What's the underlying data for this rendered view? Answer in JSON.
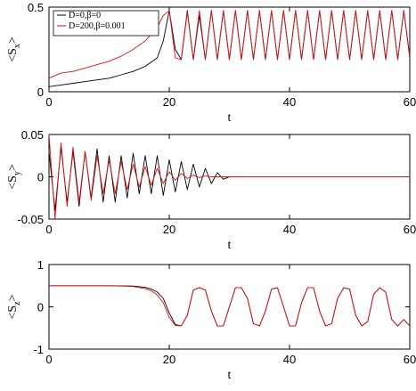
{
  "chart_data": [
    {
      "type": "line",
      "ylabel": "<S_x>",
      "xlabel": "t",
      "xlim": [
        0,
        60
      ],
      "ylim": [
        0,
        0.5
      ],
      "xticks": [
        0,
        20,
        40,
        60
      ],
      "yticks": [
        0,
        0.5
      ],
      "xtick_labels": [
        "0",
        "20",
        "40",
        "60"
      ],
      "ytick_labels": [
        "0",
        "0.5"
      ],
      "legend": {
        "placement": "top-left",
        "entries": [
          "D=0,β=0",
          "D=200,β=0.001"
        ]
      },
      "series": [
        {
          "name": "D=0,β=0",
          "color": "#000000",
          "x": [
            0,
            2,
            4,
            6,
            8,
            10,
            12,
            14,
            16,
            18,
            19,
            20,
            21,
            22,
            23,
            24,
            25,
            26,
            27,
            28,
            29,
            30,
            31,
            32,
            33,
            34,
            35,
            36,
            37,
            38,
            39,
            40,
            41,
            42,
            43,
            44,
            45,
            46,
            47,
            48,
            49,
            50,
            51,
            52,
            53,
            54,
            55,
            56,
            57,
            58,
            59,
            60
          ],
          "y": [
            0.03,
            0.04,
            0.05,
            0.06,
            0.07,
            0.08,
            0.1,
            0.12,
            0.15,
            0.2,
            0.3,
            0.48,
            0.25,
            0.19,
            0.48,
            0.19,
            0.45,
            0.19,
            0.48,
            0.19,
            0.48,
            0.19,
            0.48,
            0.19,
            0.48,
            0.19,
            0.48,
            0.19,
            0.48,
            0.19,
            0.48,
            0.19,
            0.48,
            0.19,
            0.48,
            0.19,
            0.48,
            0.19,
            0.48,
            0.19,
            0.48,
            0.19,
            0.48,
            0.19,
            0.48,
            0.19,
            0.48,
            0.19,
            0.48,
            0.19,
            0.48,
            0.2
          ]
        },
        {
          "name": "D=200,β=0.001",
          "color": "#e01010",
          "x": [
            0,
            2,
            4,
            6,
            8,
            10,
            12,
            14,
            16,
            18,
            19,
            20,
            21,
            22,
            23,
            24,
            25,
            26,
            27,
            28,
            29,
            30,
            31,
            32,
            33,
            34,
            35,
            36,
            37,
            38,
            39,
            40,
            41,
            42,
            43,
            44,
            45,
            46,
            47,
            48,
            49,
            50,
            51,
            52,
            53,
            54,
            55,
            56,
            57,
            58,
            59,
            60
          ],
          "y": [
            0.08,
            0.11,
            0.12,
            0.14,
            0.16,
            0.18,
            0.21,
            0.25,
            0.3,
            0.38,
            0.45,
            0.48,
            0.2,
            0.19,
            0.47,
            0.19,
            0.48,
            0.19,
            0.48,
            0.19,
            0.48,
            0.19,
            0.48,
            0.19,
            0.48,
            0.19,
            0.48,
            0.19,
            0.48,
            0.19,
            0.48,
            0.19,
            0.48,
            0.19,
            0.48,
            0.19,
            0.48,
            0.19,
            0.48,
            0.19,
            0.48,
            0.19,
            0.48,
            0.19,
            0.48,
            0.19,
            0.48,
            0.19,
            0.48,
            0.19,
            0.48,
            0.21
          ]
        }
      ]
    },
    {
      "type": "line",
      "ylabel": "<S_y>",
      "xlabel": "t",
      "xlim": [
        0,
        60
      ],
      "ylim": [
        -0.05,
        0.05
      ],
      "xticks": [
        0,
        20,
        40,
        60
      ],
      "yticks": [
        -0.05,
        0,
        0.05
      ],
      "xtick_labels": [
        "0",
        "20",
        "40",
        "60"
      ],
      "ytick_labels": [
        "-0.05",
        "0",
        "0.05"
      ],
      "series": [
        {
          "name": "D=0,β=0",
          "color": "#000000",
          "x": [
            0,
            1,
            2,
            3,
            4,
            5,
            6,
            7,
            8,
            9,
            10,
            11,
            12,
            13,
            14,
            15,
            16,
            17,
            18,
            19,
            20,
            21,
            22,
            23,
            24,
            25,
            26,
            27,
            28,
            29,
            30,
            35,
            40,
            45,
            50,
            55,
            60
          ],
          "y": [
            0.03,
            -0.04,
            0.035,
            -0.03,
            0.03,
            -0.035,
            0.03,
            -0.025,
            0.033,
            -0.03,
            0.025,
            -0.03,
            0.025,
            -0.025,
            0.028,
            -0.02,
            0.025,
            -0.02,
            0.025,
            -0.022,
            0.02,
            -0.018,
            0.018,
            -0.015,
            0.015,
            -0.012,
            0.01,
            -0.008,
            0.005,
            -0.003,
            0.0,
            0.0,
            0.0,
            0.0,
            0.0,
            0.0,
            0.0
          ]
        },
        {
          "name": "D=200,β=0.001",
          "color": "#e01010",
          "x": [
            0,
            1,
            2,
            3,
            4,
            5,
            6,
            7,
            8,
            9,
            10,
            11,
            12,
            13,
            14,
            15,
            16,
            17,
            18,
            19,
            20,
            21,
            22,
            23,
            24,
            25,
            26,
            27,
            28,
            29,
            30,
            35,
            40,
            45,
            50,
            55,
            60
          ],
          "y": [
            0.05,
            -0.05,
            0.04,
            -0.035,
            0.035,
            -0.03,
            0.03,
            -0.028,
            0.025,
            -0.02,
            0.02,
            -0.02,
            0.018,
            -0.015,
            0.015,
            -0.012,
            0.012,
            -0.01,
            0.01,
            -0.008,
            0.006,
            -0.004,
            0.004,
            -0.002,
            0.002,
            -0.001,
            0.001,
            0.0,
            0.0,
            0.0,
            0.0,
            0.0,
            0.0,
            0.0,
            0.0,
            0.0,
            0.0
          ]
        }
      ]
    },
    {
      "type": "line",
      "ylabel": "<S_z>",
      "xlabel": "t",
      "xlim": [
        0,
        60
      ],
      "ylim": [
        -1,
        1
      ],
      "xticks": [
        0,
        20,
        40,
        60
      ],
      "yticks": [
        -1,
        0,
        1
      ],
      "xtick_labels": [
        "0",
        "20",
        "40",
        "60"
      ],
      "ytick_labels": [
        "-1",
        "0",
        "1"
      ],
      "series": [
        {
          "name": "D=0,β=0",
          "color": "#000000",
          "x": [
            0,
            5,
            10,
            14,
            16,
            17,
            18,
            19,
            20,
            21,
            22,
            23,
            24,
            25,
            26,
            27,
            28,
            29,
            30,
            31,
            32,
            33,
            34,
            35,
            36,
            37,
            38,
            39,
            40,
            41,
            42,
            43,
            44,
            45,
            46,
            47,
            48,
            49,
            50,
            51,
            52,
            53,
            54,
            55,
            56,
            57,
            58,
            59,
            60
          ],
          "y": [
            0.5,
            0.5,
            0.5,
            0.49,
            0.46,
            0.42,
            0.35,
            0.2,
            -0.15,
            -0.42,
            -0.45,
            -0.2,
            0.4,
            0.45,
            0.4,
            -0.1,
            -0.45,
            -0.45,
            0.0,
            0.45,
            0.45,
            0.2,
            -0.4,
            -0.45,
            -0.1,
            0.42,
            0.45,
            0.0,
            -0.45,
            -0.45,
            0.1,
            0.45,
            0.45,
            -0.1,
            -0.45,
            -0.4,
            0.2,
            0.45,
            0.42,
            -0.2,
            -0.45,
            -0.35,
            0.3,
            0.45,
            0.35,
            -0.3,
            -0.45,
            -0.3,
            -0.45
          ]
        },
        {
          "name": "D=200,β=0.001",
          "color": "#e01010",
          "x": [
            0,
            5,
            10,
            14,
            16,
            17,
            18,
            19,
            20,
            21,
            22,
            23,
            24,
            25,
            26,
            27,
            28,
            29,
            30,
            31,
            32,
            33,
            34,
            35,
            36,
            37,
            38,
            39,
            40,
            41,
            42,
            43,
            44,
            45,
            46,
            47,
            48,
            49,
            50,
            51,
            52,
            53,
            54,
            55,
            56,
            57,
            58,
            59,
            60
          ],
          "y": [
            0.5,
            0.5,
            0.5,
            0.48,
            0.43,
            0.38,
            0.28,
            0.1,
            -0.25,
            -0.44,
            -0.45,
            -0.2,
            0.4,
            0.45,
            0.4,
            -0.1,
            -0.45,
            -0.45,
            0.0,
            0.45,
            0.45,
            0.2,
            -0.4,
            -0.45,
            -0.1,
            0.42,
            0.45,
            0.0,
            -0.45,
            -0.45,
            0.1,
            0.45,
            0.45,
            -0.1,
            -0.45,
            -0.4,
            0.2,
            0.45,
            0.42,
            -0.2,
            -0.45,
            -0.35,
            0.3,
            0.45,
            0.35,
            -0.3,
            -0.45,
            -0.3,
            -0.45
          ]
        }
      ]
    }
  ]
}
